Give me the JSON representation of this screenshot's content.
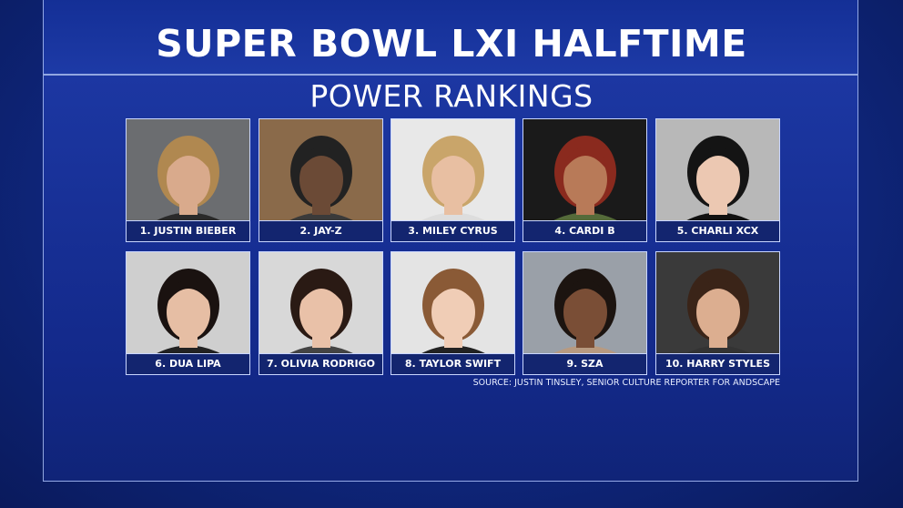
{
  "header": {
    "title": "SUPER BOWL LXI HALFTIME",
    "subtitle": "POWER RANKINGS"
  },
  "cards": [
    {
      "label": "1. JUSTIN BIEBER"
    },
    {
      "label": "2. JAY-Z"
    },
    {
      "label": "3. MILEY CYRUS"
    },
    {
      "label": "4. CARDI B"
    },
    {
      "label": "5. CHARLI XCX"
    },
    {
      "label": "6. DUA LIPA"
    },
    {
      "label": "7. OLIVIA RODRIGO"
    },
    {
      "label": "8. TAYLOR SWIFT"
    },
    {
      "label": "9. SZA"
    },
    {
      "label": "10. HARRY STYLES"
    }
  ],
  "source": "SOURCE: JUSTIN TINSLEY, SENIOR CULTURE REPORTER FOR ANDSCAPE"
}
